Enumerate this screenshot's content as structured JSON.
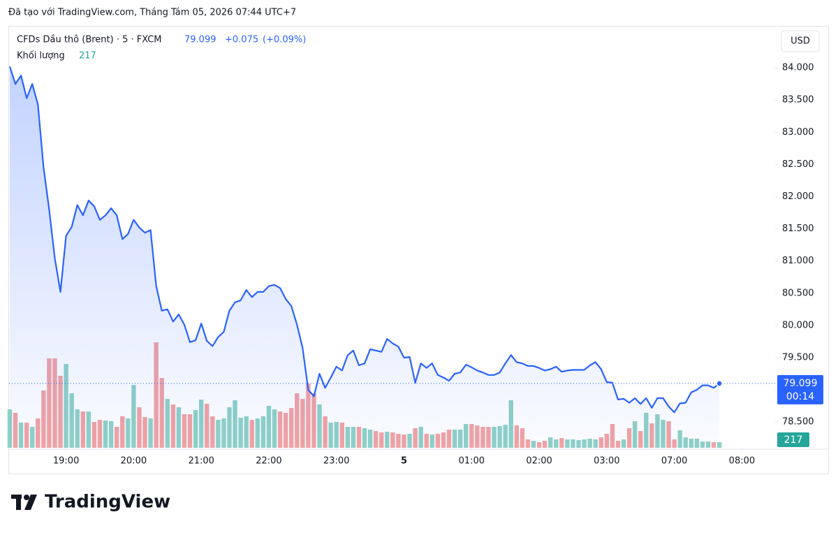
{
  "header": {
    "created": "Đã tạo với TradingView.com, Tháng Tám 05, 2026 07:44 UTC+7"
  },
  "chart_data": {
    "type": "line",
    "title": "CFDs Dầu thô (Brent) · 5 · FXCM",
    "last_change": "+0.075",
    "last_change_pct": "(+0.09%)",
    "volume_label": "Khối lượng",
    "currency": "USD",
    "countdown": "00:14",
    "series": [
      {
        "name": "CFDs Dầu thô (Brent)",
        "color": "#2962ff",
        "values": [
          84.02,
          83.75,
          83.88,
          83.53,
          83.75,
          83.43,
          82.45,
          81.8,
          81.04,
          80.52,
          81.39,
          81.53,
          81.87,
          81.71,
          81.94,
          81.85,
          81.64,
          81.71,
          81.82,
          81.71,
          81.34,
          81.42,
          81.64,
          81.52,
          81.44,
          81.48,
          80.61,
          80.23,
          80.25,
          80.06,
          80.17,
          80.01,
          79.74,
          79.77,
          80.03,
          79.76,
          79.68,
          79.82,
          79.9,
          80.23,
          80.36,
          80.39,
          80.55,
          80.44,
          80.52,
          80.52,
          80.61,
          80.63,
          80.58,
          80.41,
          80.3,
          80.01,
          79.65,
          79,
          78.9,
          79.25,
          79.03,
          79.19,
          79.36,
          79.3,
          79.54,
          79.61,
          79.38,
          79.41,
          79.63,
          79.61,
          79.59,
          79.79,
          79.72,
          79.67,
          79.5,
          79.51,
          79.11,
          79.41,
          79.34,
          79.41,
          79.23,
          79.19,
          79.14,
          79.25,
          79.27,
          79.39,
          79.35,
          79.3,
          79.27,
          79.23,
          79.23,
          79.27,
          79.41,
          79.54,
          79.43,
          79.41,
          79.37,
          79.37,
          79.34,
          79.3,
          79.32,
          79.36,
          79.28,
          79.3,
          79.31,
          79.31,
          79.31,
          79.38,
          79.43,
          79.32,
          79.12,
          79.11,
          78.85,
          78.86,
          78.8,
          78.87,
          78.78,
          78.87,
          78.72,
          78.87,
          78.87,
          78.74,
          78.65,
          78.79,
          78.8,
          78.96,
          79,
          79.07,
          79.07,
          79.03,
          79.099
        ]
      },
      {
        "name": "Khối lượng",
        "type": "bar",
        "up_color": "#8fd1c7",
        "down_color": "#f2a3a3",
        "values": [
          1485,
          1350,
          972,
          972,
          810,
          1134,
          2214,
          3456,
          3456,
          2781,
          3240,
          2106,
          1485,
          1404,
          1404,
          999,
          1080,
          1053,
          1026,
          810,
          1215,
          1134,
          2430,
          1566,
          1188,
          1134,
          4077,
          2700,
          1890,
          1674,
          1566,
          1296,
          1296,
          1458,
          1863,
          1701,
          1215,
          1080,
          1134,
          1566,
          1836,
          1161,
          1215,
          1080,
          1134,
          1215,
          1620,
          1485,
          1404,
          1350,
          1539,
          2106,
          1890,
          2484,
          2106,
          1674,
          1215,
          972,
          999,
          972,
          810,
          810,
          810,
          756,
          702,
          648,
          594,
          621,
          594,
          540,
          513,
          540,
          756,
          810,
          540,
          513,
          540,
          594,
          702,
          702,
          702,
          918,
          918,
          864,
          810,
          810,
          810,
          837,
          891,
          1836,
          864,
          756,
          324,
          270,
          216,
          270,
          405,
          324,
          378,
          324,
          324,
          297,
          324,
          351,
          324,
          405,
          540,
          918,
          270,
          324,
          756,
          1026,
          648,
          1350,
          945,
          1296,
          1080,
          1026,
          324,
          675,
          405,
          351,
          351,
          243,
          243,
          216,
          217
        ]
      }
    ],
    "xlim": [
      -0.12,
      135.9
    ],
    "xticks": [
      {
        "value": 10,
        "label": "19:00"
      },
      {
        "value": 22,
        "label": "20:00"
      },
      {
        "value": 34,
        "label": "21:00"
      },
      {
        "value": 46,
        "label": "22:00"
      },
      {
        "value": 58,
        "label": "23:00"
      },
      {
        "value": 70,
        "label": "5"
      },
      {
        "value": 82,
        "label": "01:00"
      },
      {
        "value": 94,
        "label": "02:00"
      },
      {
        "value": 106,
        "label": "03:00"
      },
      {
        "value": 118,
        "label": "07:00"
      },
      {
        "value": 130,
        "label": "08:00"
      }
    ],
    "ylim": [
      78.1,
      84.62
    ],
    "yticks": [
      {
        "value": 78.5,
        "label": "78.500"
      },
      {
        "value": 79,
        "label": "79.000"
      },
      {
        "value": 79.5,
        "label": "79.500"
      },
      {
        "value": 80,
        "label": "80.000"
      },
      {
        "value": 80.5,
        "label": "80.500"
      },
      {
        "value": 81,
        "label": "81.000"
      },
      {
        "value": 81.5,
        "label": "81.500"
      },
      {
        "value": 82,
        "label": "82.000"
      },
      {
        "value": 82.5,
        "label": "82.500"
      },
      {
        "value": 83,
        "label": "83.000"
      },
      {
        "value": 83.5,
        "label": "83.500"
      },
      {
        "value": 84,
        "label": "84.000"
      }
    ],
    "grid": false
  },
  "footer": {
    "logo": "TradingView"
  }
}
